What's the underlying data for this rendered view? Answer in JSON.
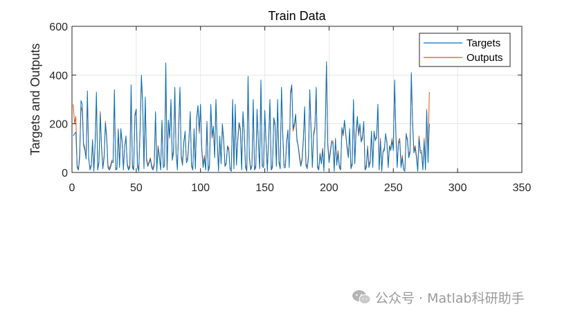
{
  "chart_data": {
    "type": "line",
    "title": "Train Data",
    "xlabel": "",
    "ylabel": "Targets and Outputs",
    "xlim": [
      0,
      350
    ],
    "ylim": [
      0,
      600
    ],
    "xticks": [
      0,
      50,
      100,
      150,
      200,
      250,
      300,
      350
    ],
    "yticks": [
      0,
      200,
      400,
      600
    ],
    "grid": true,
    "legend_position": "top-right",
    "series": [
      {
        "name": "Targets",
        "color": "#0072BD",
        "values": [
          150,
          160,
          165,
          30,
          10,
          60,
          295,
          280,
          120,
          100,
          55,
          335,
          60,
          10,
          25,
          135,
          5,
          110,
          330,
          10,
          40,
          240,
          100,
          15,
          60,
          200,
          140,
          20,
          10,
          20,
          45,
          40,
          340,
          10,
          15,
          175,
          20,
          180,
          130,
          10,
          105,
          150,
          30,
          10,
          20,
          360,
          20,
          10,
          240,
          260,
          20,
          5,
          180,
          400,
          290,
          15,
          310,
          50,
          25,
          40,
          55,
          20,
          10,
          30,
          250,
          5,
          100,
          60,
          10,
          215,
          20,
          25,
          450,
          10,
          215,
          145,
          300,
          50,
          80,
          350,
          75,
          10,
          190,
          350,
          60,
          30,
          120,
          170,
          40,
          50,
          130,
          250,
          25,
          10,
          180,
          15,
          225,
          275,
          170,
          280,
          90,
          20,
          60,
          10,
          210,
          5,
          20,
          280,
          150,
          190,
          60,
          300,
          120,
          5,
          150,
          35,
          200,
          140,
          25,
          35,
          105,
          90,
          10,
          5,
          300,
          15,
          280,
          30,
          140,
          205,
          180,
          10,
          250,
          170,
          20,
          5,
          395,
          60,
          10,
          25,
          300,
          10,
          20,
          260,
          120,
          15,
          380,
          25,
          20,
          255,
          120,
          5,
          140,
          300,
          10,
          20,
          225,
          200,
          25,
          300,
          40,
          15,
          350,
          160,
          20,
          20,
          120,
          175,
          20,
          330,
          360,
          180,
          200,
          240,
          140,
          105,
          60,
          25,
          50,
          130,
          270,
          30,
          15,
          60,
          340,
          180,
          20,
          160,
          190,
          350,
          20,
          10,
          75,
          35,
          95,
          5,
          170,
          455,
          110,
          40,
          80,
          125,
          120,
          5,
          140,
          30,
          80,
          20,
          10,
          185,
          160,
          215,
          160,
          100,
          60,
          180,
          15,
          30,
          300,
          35,
          170,
          230,
          160,
          200,
          125,
          140,
          210,
          10,
          20,
          100,
          20,
          40,
          170,
          20,
          170,
          130,
          150,
          280,
          10,
          130,
          5,
          85,
          90,
          160,
          120,
          20,
          105,
          90,
          130,
          90,
          380,
          150,
          20,
          120,
          130,
          20,
          60,
          10,
          5,
          160,
          130,
          60,
          80,
          410,
          200,
          80,
          100,
          60,
          5,
          140,
          80,
          80,
          10,
          130,
          10,
          250,
          40,
          200
        ]
      },
      {
        "name": "Outputs",
        "color": "#D95319",
        "values": [
          280,
          200,
          230,
          20,
          10,
          80,
          270,
          250,
          110,
          90,
          60,
          310,
          55,
          20,
          30,
          120,
          15,
          120,
          310,
          20,
          45,
          250,
          110,
          20,
          70,
          210,
          150,
          30,
          15,
          30,
          50,
          50,
          320,
          15,
          20,
          180,
          30,
          170,
          120,
          20,
          110,
          140,
          40,
          15,
          30,
          340,
          30,
          15,
          230,
          250,
          30,
          15,
          170,
          390,
          280,
          20,
          300,
          60,
          30,
          45,
          60,
          30,
          15,
          40,
          240,
          15,
          110,
          70,
          15,
          210,
          30,
          30,
          430,
          15,
          210,
          140,
          290,
          60,
          90,
          340,
          80,
          20,
          180,
          340,
          70,
          40,
          130,
          160,
          50,
          60,
          140,
          240,
          30,
          15,
          170,
          20,
          220,
          270,
          160,
          270,
          100,
          30,
          70,
          15,
          200,
          15,
          30,
          270,
          140,
          180,
          70,
          290,
          130,
          15,
          140,
          40,
          190,
          130,
          30,
          40,
          110,
          100,
          15,
          15,
          290,
          20,
          270,
          40,
          130,
          200,
          170,
          15,
          240,
          160,
          30,
          15,
          380,
          70,
          15,
          30,
          290,
          15,
          30,
          250,
          130,
          20,
          370,
          30,
          30,
          250,
          130,
          15,
          130,
          290,
          15,
          30,
          220,
          190,
          30,
          290,
          50,
          20,
          340,
          150,
          30,
          30,
          130,
          170,
          30,
          320,
          350,
          170,
          190,
          230,
          130,
          110,
          70,
          30,
          60,
          140,
          260,
          40,
          20,
          70,
          330,
          170,
          30,
          150,
          180,
          340,
          30,
          15,
          80,
          40,
          100,
          15,
          160,
          440,
          120,
          50,
          90,
          130,
          130,
          15,
          130,
          40,
          90,
          30,
          15,
          175,
          150,
          210,
          150,
          110,
          70,
          170,
          20,
          40,
          290,
          40,
          160,
          220,
          150,
          190,
          130,
          150,
          200,
          15,
          30,
          110,
          30,
          50,
          160,
          30,
          160,
          140,
          140,
          270,
          15,
          140,
          15,
          90,
          100,
          150,
          130,
          30,
          110,
          100,
          140,
          100,
          370,
          160,
          30,
          130,
          140,
          30,
          70,
          15,
          15,
          150,
          140,
          70,
          90,
          400,
          210,
          90,
          110,
          70,
          15,
          150,
          90,
          90,
          15,
          140,
          15,
          260,
          50,
          330
        ]
      }
    ]
  },
  "watermark": {
    "text": "公众号 · Matlab科研助手"
  }
}
